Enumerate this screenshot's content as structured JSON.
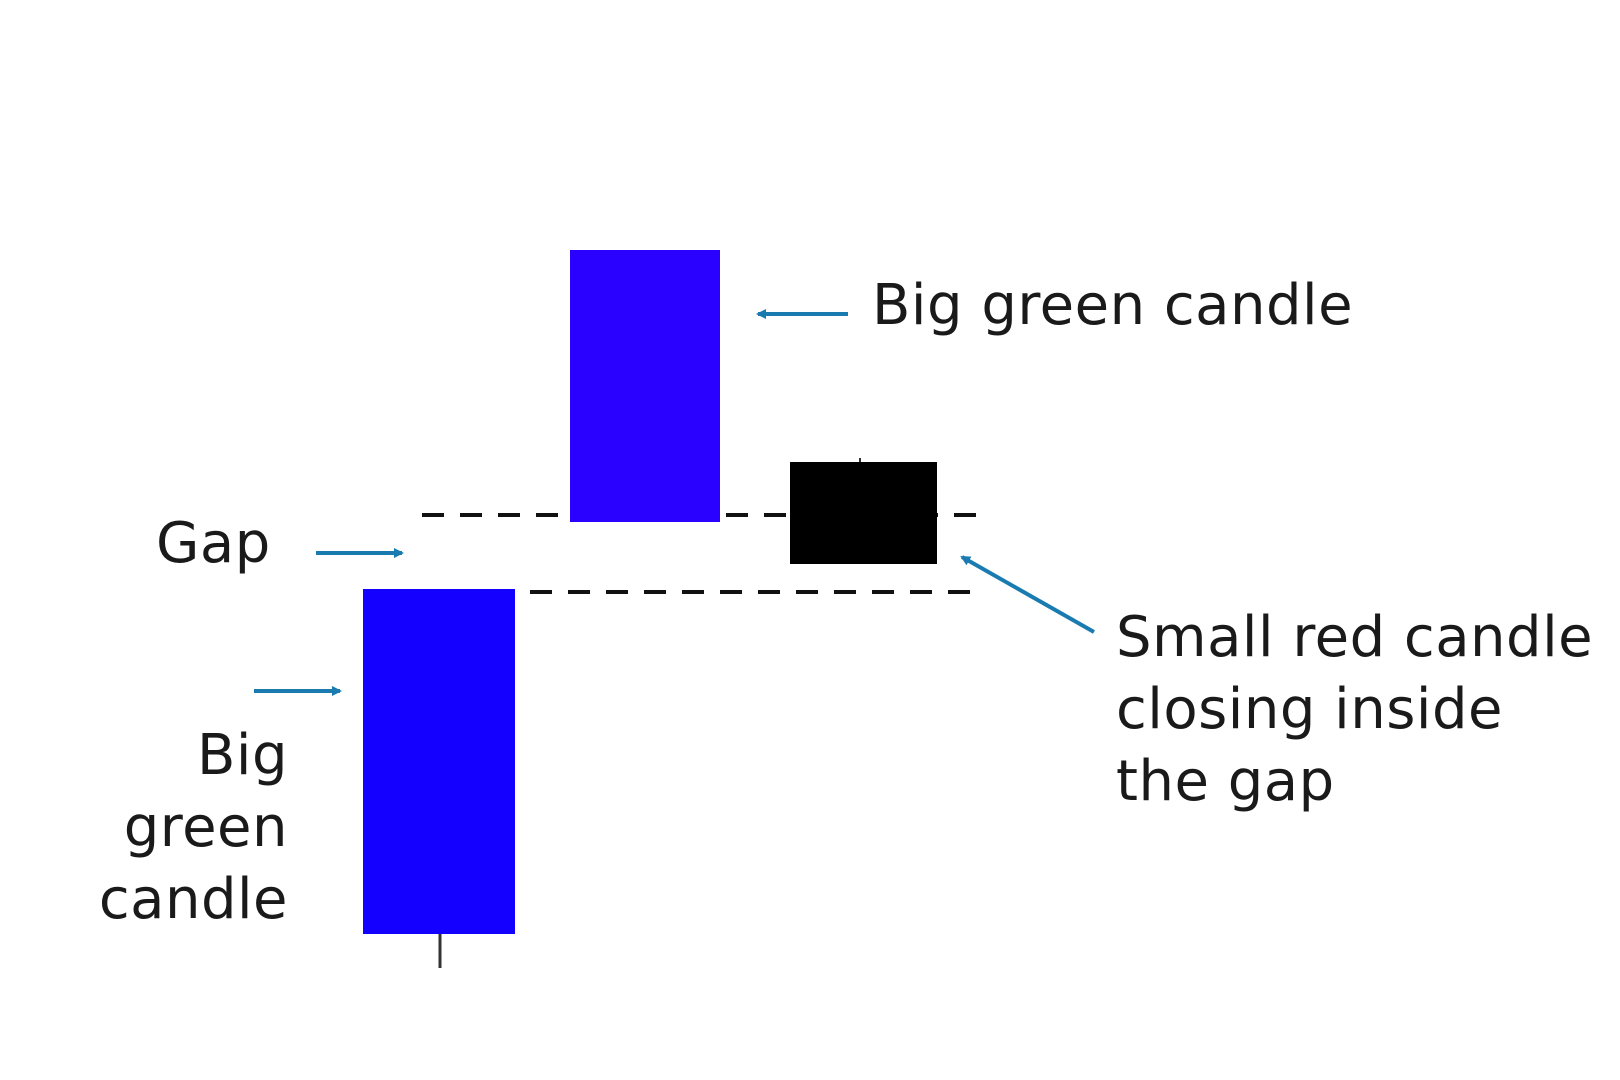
{
  "colors": {
    "bullish_candle": "#1400ff",
    "bullish_candle_alt": "#2a00ff",
    "bearish_candle": "#000000",
    "arrow": "#1a7bb0",
    "dash": "#111111",
    "text": "#1a1a1a"
  },
  "labels": {
    "gap": "Gap",
    "first_candle": "Big\ngreen\ncandle",
    "second_candle": "Big green candle",
    "third_candle": "Small red candle\nclosing inside\nthe gap"
  },
  "icons": {
    "arrow": "arrow-icon"
  }
}
